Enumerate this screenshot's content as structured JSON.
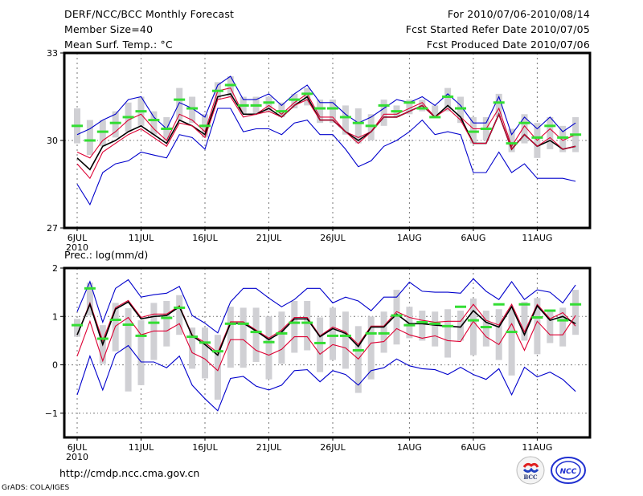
{
  "header": {
    "left": [
      "DERF/NCC/BCC Monthly Forecast",
      "Member Size=40",
      "Mean Surf. Temp.: °C"
    ],
    "right": [
      "For 2010/07/06-2010/08/14",
      "Fcst Started Refer Date 2010/07/05",
      "Fcst Produced Date 2010/07/06"
    ]
  },
  "footer": {
    "url": "http://cmdp.ncc.cma.gov.cn",
    "credit": "GrADS: COLA/IGES",
    "logos": [
      "BCC",
      "NCC"
    ]
  },
  "chart_data": [
    {
      "type": "line",
      "title": "Mean Surf. Temp.: °C",
      "xlabel": "",
      "ylabel": "°C",
      "ylim": [
        27,
        33
      ],
      "yticks": [
        27,
        30,
        33
      ],
      "xtick_labels": [
        "6JUL",
        "11JUL",
        "16JUL",
        "21JUL",
        "26JUL",
        "1AUG",
        "6AUG",
        "11AUG"
      ],
      "xtick_index": [
        0,
        5,
        10,
        15,
        20,
        26,
        31,
        36
      ],
      "year_label": "2010",
      "grid": true,
      "days": 40,
      "series": [
        {
          "name": "ensemble max",
          "color": "#0000cc",
          "values": [
            30.2,
            30.4,
            30.7,
            30.9,
            31.4,
            31.5,
            30.8,
            30.4,
            31.3,
            31.1,
            30.8,
            31.9,
            32.2,
            31.4,
            31.4,
            31.6,
            31.2,
            31.6,
            31.9,
            31.3,
            31.3,
            30.9,
            30.6,
            30.8,
            31.1,
            31.4,
            31.3,
            31.5,
            31.2,
            31.6,
            31.2,
            30.6,
            30.6,
            31.5,
            30.2,
            30.8,
            30.4,
            30.8,
            30.3,
            30.6
          ]
        },
        {
          "name": "upper percentile",
          "color": "#dd0033",
          "values": [
            29.6,
            29.4,
            30.0,
            30.3,
            30.7,
            30.9,
            30.4,
            30.0,
            30.9,
            30.7,
            30.3,
            31.7,
            31.8,
            30.9,
            30.9,
            31.2,
            30.9,
            31.3,
            31.6,
            30.8,
            30.8,
            30.3,
            30.1,
            30.3,
            30.9,
            30.9,
            31.1,
            31.3,
            30.8,
            31.2,
            30.8,
            30.4,
            30.4,
            31.1,
            29.8,
            30.5,
            30.0,
            30.4,
            30.0,
            30.2
          ]
        },
        {
          "name": "ensemble mean",
          "color": "#000000",
          "values": [
            29.4,
            29.0,
            29.8,
            30.0,
            30.3,
            30.5,
            30.2,
            29.9,
            30.7,
            30.5,
            30.2,
            31.5,
            31.6,
            30.9,
            30.9,
            31.1,
            30.8,
            31.2,
            31.5,
            30.7,
            30.7,
            30.3,
            30.0,
            30.3,
            30.8,
            30.8,
            31.0,
            31.2,
            30.8,
            31.2,
            30.8,
            29.9,
            29.9,
            30.9,
            29.7,
            30.2,
            29.8,
            30.0,
            29.7,
            29.8
          ]
        },
        {
          "name": "lower percentile",
          "color": "#dd0033",
          "values": [
            29.2,
            28.7,
            29.6,
            29.9,
            30.2,
            30.4,
            30.1,
            29.8,
            30.6,
            30.5,
            30.1,
            31.4,
            31.5,
            30.8,
            30.9,
            31.0,
            30.8,
            31.2,
            31.4,
            30.7,
            30.7,
            30.3,
            29.9,
            30.3,
            30.8,
            30.8,
            31.0,
            31.2,
            30.8,
            31.1,
            30.7,
            29.9,
            29.9,
            30.9,
            29.7,
            30.2,
            29.8,
            30.1,
            29.7,
            29.8
          ]
        },
        {
          "name": "ensemble min",
          "color": "#0000cc",
          "values": [
            28.5,
            27.8,
            28.9,
            29.2,
            29.3,
            29.6,
            29.5,
            29.4,
            30.2,
            30.1,
            29.7,
            31.1,
            31.1,
            30.3,
            30.4,
            30.4,
            30.2,
            30.6,
            30.7,
            30.2,
            30.2,
            29.7,
            29.1,
            29.3,
            29.8,
            30.0,
            30.3,
            30.7,
            30.2,
            30.3,
            30.2,
            28.9,
            28.9,
            29.6,
            28.9,
            29.2,
            28.7,
            28.7,
            28.7,
            28.6
          ]
        },
        {
          "name": "observed/climate reference",
          "color": "#33dd33",
          "style": "marker",
          "values": [
            30.5,
            30.0,
            30.3,
            30.6,
            30.8,
            31.0,
            30.7,
            30.4,
            31.4,
            31.1,
            30.5,
            31.7,
            31.9,
            31.2,
            31.2,
            31.3,
            31.0,
            31.4,
            31.6,
            31.1,
            31.1,
            30.8,
            30.6,
            30.5,
            31.2,
            31.0,
            31.3,
            31.1,
            30.8,
            31.5,
            31.1,
            30.3,
            30.4,
            31.3,
            29.9,
            30.6,
            30.1,
            30.5,
            30.1,
            30.2
          ]
        },
        {
          "name": "ensemble spread box",
          "color": "#d0d0d4",
          "style": "bar",
          "low": [
            29.9,
            29.5,
            29.8,
            30.1,
            30.3,
            30.5,
            30.2,
            30.0,
            30.7,
            30.6,
            30.1,
            31.4,
            31.5,
            30.9,
            30.9,
            31.0,
            30.8,
            31.1,
            31.2,
            30.6,
            30.6,
            30.2,
            29.9,
            30.0,
            30.5,
            30.8,
            30.9,
            31.0,
            30.8,
            31.0,
            30.6,
            29.9,
            30.0,
            30.8,
            29.6,
            29.9,
            29.4,
            29.7,
            29.6,
            29.6
          ],
          "high": [
            31.1,
            30.7,
            30.7,
            31.0,
            31.3,
            31.5,
            31.0,
            30.8,
            31.8,
            31.5,
            30.9,
            32.0,
            32.2,
            31.5,
            31.5,
            31.5,
            31.3,
            31.6,
            31.8,
            31.4,
            31.4,
            31.2,
            31.1,
            30.9,
            31.4,
            31.2,
            31.4,
            31.4,
            31.2,
            31.8,
            31.5,
            30.8,
            30.8,
            31.6,
            30.4,
            30.9,
            30.6,
            30.8,
            30.5,
            30.8
          ]
        }
      ]
    },
    {
      "type": "line",
      "title": "Prec.: log(mm/d)",
      "xlabel": "",
      "ylabel": "log(mm/d)",
      "ylim": [
        -1.5,
        2
      ],
      "yticks": [
        -1,
        0,
        1,
        2
      ],
      "xtick_labels": [
        "6JUL",
        "11JUL",
        "16JUL",
        "21JUL",
        "26JUL",
        "1AUG",
        "6AUG",
        "11AUG"
      ],
      "xtick_index": [
        0,
        5,
        10,
        15,
        20,
        26,
        31,
        36
      ],
      "year_label": "2010",
      "grid": true,
      "days": 40,
      "series": [
        {
          "name": "ensemble max",
          "color": "#0000cc",
          "values": [
            1.1,
            1.72,
            0.88,
            1.58,
            1.76,
            1.4,
            1.45,
            1.48,
            1.62,
            1.02,
            0.86,
            0.66,
            1.3,
            1.58,
            1.58,
            1.38,
            1.2,
            1.35,
            1.58,
            1.58,
            1.28,
            1.4,
            1.32,
            1.12,
            1.4,
            1.4,
            1.71,
            1.52,
            1.5,
            1.5,
            1.48,
            1.78,
            1.52,
            1.35,
            1.72,
            1.35,
            1.55,
            1.5,
            1.28,
            1.65
          ]
        },
        {
          "name": "upper percentile",
          "color": "#dd0033",
          "values": [
            0.62,
            1.28,
            0.5,
            1.18,
            1.33,
            0.98,
            1.05,
            1.05,
            1.22,
            0.62,
            0.46,
            0.25,
            0.89,
            0.89,
            0.72,
            0.55,
            0.72,
            0.98,
            0.98,
            0.6,
            0.78,
            0.68,
            0.42,
            0.8,
            0.8,
            1.1,
            0.98,
            0.92,
            0.88,
            0.9,
            0.9,
            1.25,
            0.92,
            0.82,
            1.25,
            0.68,
            1.25,
            0.95,
            1.08,
            0.8
          ]
        },
        {
          "name": "ensemble mean",
          "color": "#000000",
          "values": [
            0.62,
            1.25,
            0.42,
            1.15,
            1.3,
            0.95,
            1.0,
            1.02,
            1.2,
            0.6,
            0.42,
            0.2,
            0.86,
            0.86,
            0.7,
            0.52,
            0.68,
            0.95,
            0.95,
            0.58,
            0.75,
            0.65,
            0.38,
            0.78,
            0.78,
            1.05,
            0.85,
            0.85,
            0.82,
            0.8,
            0.78,
            1.12,
            0.88,
            0.78,
            1.2,
            0.62,
            1.22,
            0.92,
            1.0,
            0.85
          ]
        },
        {
          "name": "lower percentile",
          "color": "#dd0033",
          "values": [
            0.18,
            0.9,
            0.08,
            0.8,
            0.98,
            0.62,
            0.7,
            0.7,
            0.85,
            0.25,
            0.12,
            -0.12,
            0.52,
            0.52,
            0.3,
            0.2,
            0.32,
            0.58,
            0.58,
            0.22,
            0.42,
            0.35,
            0.12,
            0.45,
            0.48,
            0.75,
            0.62,
            0.55,
            0.6,
            0.5,
            0.48,
            0.9,
            0.58,
            0.42,
            0.85,
            0.3,
            0.9,
            0.62,
            0.62,
            1.02
          ]
        },
        {
          "name": "ensemble min",
          "color": "#0000cc",
          "values": [
            -0.62,
            0.18,
            -0.52,
            0.22,
            0.4,
            0.06,
            0.06,
            -0.06,
            0.18,
            -0.42,
            -0.7,
            -0.95,
            -0.28,
            -0.24,
            -0.44,
            -0.52,
            -0.42,
            -0.12,
            -0.1,
            -0.35,
            -0.12,
            -0.2,
            -0.42,
            -0.12,
            -0.06,
            0.12,
            -0.02,
            -0.08,
            -0.1,
            -0.2,
            -0.05,
            -0.2,
            -0.3,
            -0.08,
            -0.62,
            -0.05,
            -0.25,
            -0.15,
            -0.3,
            -0.55
          ]
        },
        {
          "name": "observed/climate reference",
          "color": "#33dd33",
          "style": "marker",
          "values": [
            0.82,
            1.58,
            0.54,
            0.93,
            0.83,
            0.6,
            0.87,
            0.97,
            1.18,
            0.58,
            0.46,
            0.28,
            0.85,
            0.85,
            0.68,
            0.47,
            0.65,
            0.87,
            0.87,
            0.45,
            0.6,
            0.6,
            0.3,
            0.65,
            0.65,
            1.02,
            0.82,
            0.88,
            0.85,
            0.8,
            1.2,
            0.92,
            0.78,
            1.25,
            0.68,
            1.25,
            0.98,
            1.12,
            0.92,
            1.25
          ]
        },
        {
          "name": "ensemble spread box",
          "color": "#d0d0d4",
          "style": "bar",
          "low": [
            0.58,
            1.02,
            0.02,
            0.28,
            -0.55,
            -0.42,
            0.1,
            0.38,
            0.62,
            -0.08,
            -0.28,
            -0.72,
            -0.06,
            -0.06,
            0.06,
            -0.3,
            0.02,
            0.25,
            0.3,
            -0.15,
            0.1,
            -0.08,
            -0.58,
            -0.3,
            0.25,
            0.42,
            0.55,
            0.5,
            0.38,
            0.15,
            0.5,
            0.2,
            0.38,
            0.1,
            -0.22,
            0.5,
            0.22,
            0.45,
            0.38,
            0.62
          ],
          "high": [
            0.95,
            1.7,
            0.82,
            1.28,
            1.17,
            0.92,
            1.28,
            1.32,
            1.44,
            0.77,
            0.77,
            0.62,
            1.2,
            1.18,
            1.18,
            1.0,
            1.1,
            1.32,
            1.32,
            0.98,
            1.18,
            1.1,
            0.8,
            1.0,
            1.1,
            1.55,
            1.2,
            1.12,
            1.1,
            1.15,
            1.12,
            1.37,
            1.12,
            1.15,
            1.15,
            1.3,
            1.38,
            1.1,
            1.18,
            1.55
          ]
        }
      ]
    }
  ]
}
